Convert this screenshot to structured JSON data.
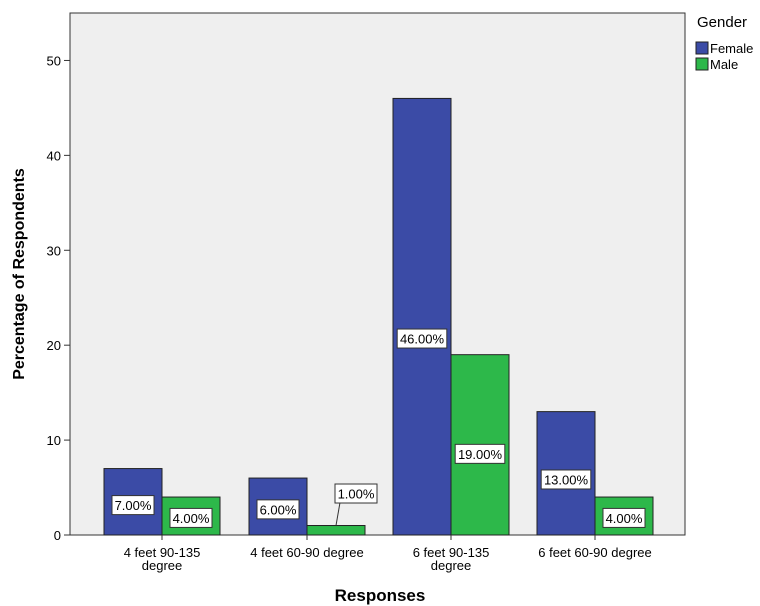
{
  "chart_data": {
    "type": "bar",
    "categories": [
      [
        "4 feet 90-135",
        "degree"
      ],
      [
        "4 feet 60-90 degree"
      ],
      [
        "6 feet 90-135",
        "degree"
      ],
      [
        "6 feet 60-90 degree"
      ]
    ],
    "series": [
      {
        "name": "Female",
        "values": [
          7,
          6,
          46,
          13
        ],
        "labels": [
          "7.00%",
          "6.00%",
          "46.00%",
          "13.00%"
        ],
        "color": "#3b4ba6"
      },
      {
        "name": "Male",
        "values": [
          4,
          1,
          19,
          4
        ],
        "labels": [
          "4.00%",
          "1.00%",
          "19.00%",
          "4.00%"
        ],
        "color": "#2db84a"
      }
    ],
    "xlabel": "Responses",
    "ylabel": "Percentage of Respondents",
    "ylim": [
      0,
      55
    ],
    "yticks": [
      0,
      10,
      20,
      30,
      40,
      50
    ],
    "legend": {
      "title": "Gender",
      "position": "top-right"
    },
    "plot_background": "#efefef",
    "grid": false
  }
}
